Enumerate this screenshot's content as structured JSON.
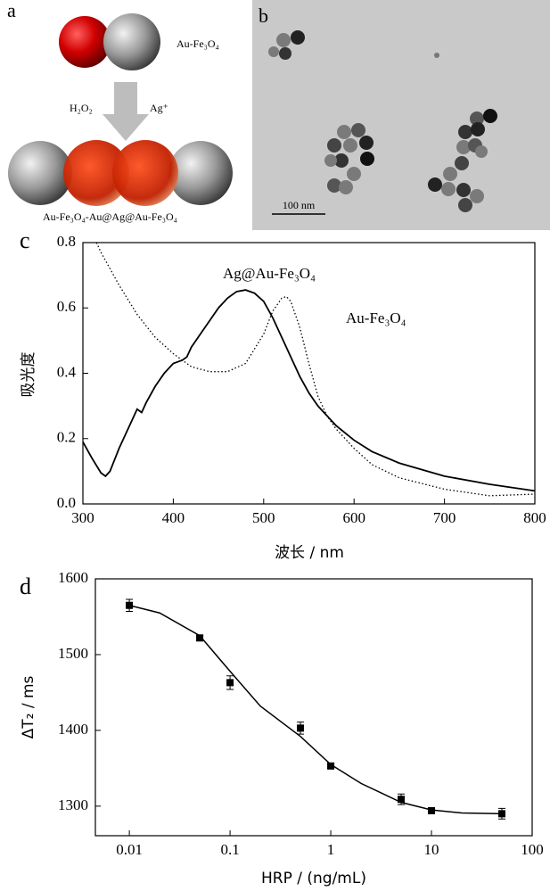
{
  "panels": {
    "a": {
      "label": "a",
      "top_particle": "Au-Fe₃O₄",
      "reagent_left": "H₂O₂",
      "reagent_right": "Ag⁺",
      "bottom_particle": "Au-Fe₃O₄-Au@Ag@Au-Fe₃O₄"
    },
    "b": {
      "label": "b",
      "scale_bar": "100 nm"
    }
  },
  "chart_data": [
    {
      "type": "line",
      "panel_label": "c",
      "xlabel": "波长 / nm",
      "ylabel": "吸光度",
      "xlim": [
        300,
        800
      ],
      "ylim": [
        0,
        0.8
      ],
      "xticks": [
        300,
        400,
        500,
        600,
        700,
        800
      ],
      "yticks": [
        {
          "value": 0,
          "label": "0.0"
        },
        0.2,
        0.4,
        0.6,
        0.8
      ],
      "series": [
        {
          "name": "Ag@Au-Fe₃O₄",
          "color": "#000000",
          "line_style": "solid",
          "x": [
            300,
            310,
            320,
            325,
            330,
            340,
            350,
            360,
            365,
            370,
            380,
            390,
            400,
            410,
            415,
            420,
            430,
            440,
            450,
            460,
            470,
            480,
            490,
            500,
            510,
            520,
            530,
            540,
            550,
            560,
            570,
            580,
            600,
            620,
            650,
            700,
            750,
            800
          ],
          "values": [
            0.19,
            0.14,
            0.095,
            0.085,
            0.1,
            0.17,
            0.23,
            0.29,
            0.28,
            0.31,
            0.36,
            0.4,
            0.43,
            0.44,
            0.45,
            0.48,
            0.52,
            0.56,
            0.6,
            0.63,
            0.65,
            0.655,
            0.645,
            0.62,
            0.57,
            0.51,
            0.45,
            0.39,
            0.34,
            0.3,
            0.27,
            0.24,
            0.195,
            0.16,
            0.125,
            0.085,
            0.06,
            0.04
          ]
        },
        {
          "name": "Au-Fe₃O₄",
          "color": "#000000",
          "line_style": "dotted",
          "x": [
            315,
            320,
            340,
            360,
            380,
            400,
            420,
            440,
            460,
            480,
            500,
            510,
            520,
            525,
            530,
            540,
            550,
            560,
            570,
            580,
            600,
            620,
            650,
            700,
            750,
            800
          ],
          "values": [
            0.8,
            0.77,
            0.67,
            0.58,
            0.51,
            0.46,
            0.42,
            0.405,
            0.405,
            0.43,
            0.52,
            0.59,
            0.63,
            0.635,
            0.62,
            0.54,
            0.43,
            0.33,
            0.27,
            0.23,
            0.17,
            0.12,
            0.08,
            0.045,
            0.025,
            0.03
          ]
        }
      ]
    },
    {
      "type": "scatter",
      "panel_label": "d",
      "xlabel": "HRP / (ng/mL)",
      "ylabel": "ΔT₂ / ms",
      "xscale": "log",
      "xlim": [
        0.0046,
        100
      ],
      "ylim": [
        1261,
        1600
      ],
      "xticks": [
        0.01,
        0.1,
        1,
        10,
        100
      ],
      "yticks": [
        1300,
        1400,
        1500,
        1600
      ],
      "series": [
        {
          "color": "#000000",
          "x": [
            0.01,
            0.05,
            0.1,
            0.5,
            1,
            5,
            10,
            50
          ],
          "values": [
            1565,
            1522,
            1463,
            1403,
            1353,
            1309,
            1294,
            1290
          ],
          "errors": [
            8,
            3,
            9,
            8,
            3,
            7,
            3,
            7
          ]
        }
      ],
      "fit": {
        "color": "#000000",
        "x": [
          0.01,
          0.02,
          0.05,
          0.1,
          0.2,
          0.5,
          1,
          2,
          5,
          10,
          20,
          50
        ],
        "values": [
          1565,
          1555,
          1525,
          1478,
          1432,
          1392,
          1355,
          1330,
          1305,
          1295,
          1291,
          1290
        ]
      }
    }
  ]
}
